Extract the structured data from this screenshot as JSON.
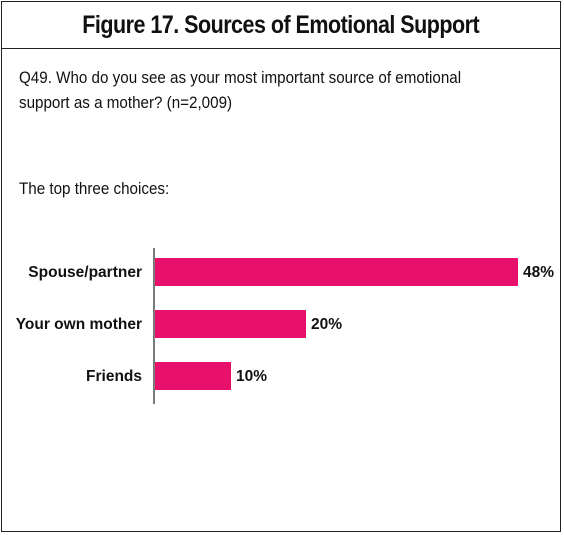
{
  "figure": {
    "title": "Figure 17. Sources of Emotional Support",
    "question": "Q49. Who do you see as your most important source of emotional support as a mother? (n=2,009)",
    "subheading": "The top three choices:"
  },
  "colors": {
    "bar": "#e8106a",
    "border": "#222222",
    "text": "#111111"
  },
  "chart_data": {
    "type": "bar",
    "orientation": "horizontal",
    "categories": [
      "Spouse/partner",
      "Your own mother",
      "Friends"
    ],
    "values": [
      48,
      20,
      10
    ],
    "value_labels": [
      "48%",
      "20%",
      "10%"
    ],
    "unit": "%",
    "xlim": [
      0,
      48
    ],
    "grid": false,
    "legend": "none"
  }
}
